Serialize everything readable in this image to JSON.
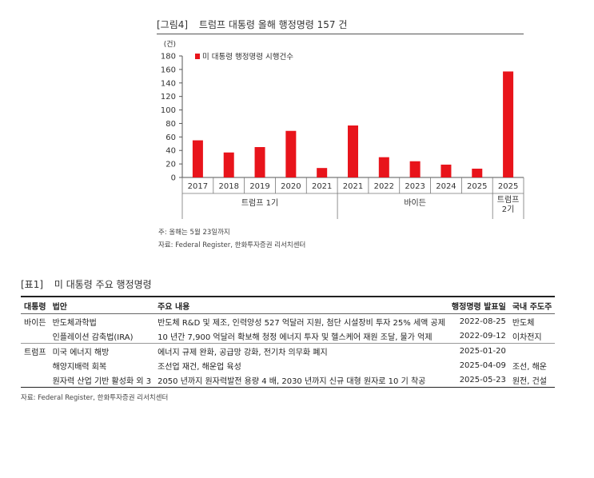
{
  "figure": {
    "number": "[그림4]",
    "title": "트럼프 대통령 올해 행정명령 157 건",
    "note": "주: 올해는 5월 23일까지",
    "source": "자료: Federal Register, 한화투자증권 리서치센터"
  },
  "chart_data": {
    "type": "bar",
    "y_unit": "(건)",
    "ylim": [
      0,
      180
    ],
    "yticks": [
      0,
      20,
      40,
      60,
      80,
      100,
      120,
      140,
      160,
      180
    ],
    "categories": [
      "2017",
      "2018",
      "2019",
      "2020",
      "2021",
      "2021",
      "2022",
      "2023",
      "2024",
      "2025",
      "2025"
    ],
    "series": [
      {
        "name": "미 대통령 행정명령 시행건수",
        "color": "#e8141b",
        "values": [
          55,
          37,
          45,
          69,
          14,
          77,
          30,
          24,
          19,
          13,
          157
        ]
      }
    ],
    "groups": [
      {
        "label": "트럼프 1기",
        "start": 0,
        "end": 4
      },
      {
        "label": "바이든",
        "start": 5,
        "end": 9
      },
      {
        "label": "트럼프\n2기",
        "start": 10,
        "end": 10
      }
    ],
    "legend_position": "top-left",
    "grid": false
  },
  "table": {
    "number": "[표1]",
    "title": "미 대통령 주요 행정명령",
    "headers": [
      "대통령",
      "법안",
      "주요 내용",
      "행정명령 발표일",
      "국내 주도주"
    ],
    "rows": [
      [
        "바이든",
        "반도체과학법",
        "반도체 R&D 및 제조, 인력양성 527 억달러 지원, 첨단 시설장비 투자 25% 세액 공제",
        "2022-08-25",
        "반도체"
      ],
      [
        "",
        "인플레이션 감축법(IRA)",
        "10 년간 7,900 억달러 확보해 청정 에너지 투자 및 헬스케어 재원 조달, 물가 억제",
        "2022-09-12",
        "이차전지"
      ],
      [
        "트럼프",
        "미국 에너지 해방",
        "에너지 규제 완화, 공급망 강화, 전기차 의무화 폐지",
        "2025-01-20",
        ""
      ],
      [
        "",
        "해양지배력 회복",
        "조선업 재건, 해운업 육성",
        "2025-04-09",
        "조선, 해운"
      ],
      [
        "",
        "원자력 산업 기반 활성화 외 3",
        "2050 년까지 원자력발전 용량 4 배, 2030 년까지 신규 대형 원자로 10 기 착공",
        "2025-05-23",
        "원전, 건설"
      ]
    ],
    "source": "자료: Federal Register, 한화투자증권 리서치센터"
  }
}
